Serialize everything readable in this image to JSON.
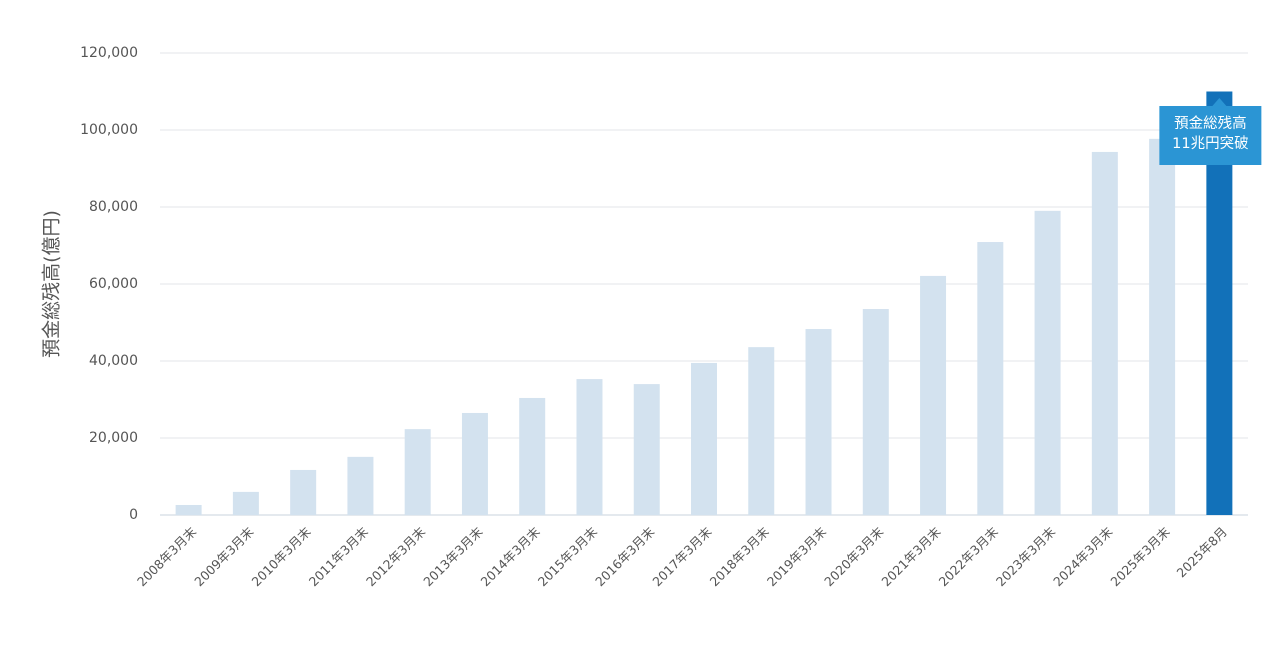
{
  "chart_data": {
    "type": "bar",
    "y_label": "預金総残高(億円)",
    "categories": [
      "2008年3月末",
      "2009年3月末",
      "2010年3月末",
      "2011年3月末",
      "2012年3月末",
      "2013年3月末",
      "2014年3月末",
      "2015年3月末",
      "2016年3月末",
      "2017年3月末",
      "2018年3月末",
      "2019年3月末",
      "2020年3月末",
      "2021年3月末",
      "2022年3月末",
      "2023年3月末",
      "2024年3月末",
      "2025年3月末",
      "2025年8月"
    ],
    "values": [
      2600,
      6000,
      11700,
      15100,
      22300,
      26500,
      30400,
      35300,
      34000,
      39500,
      43600,
      48300,
      53500,
      62100,
      70900,
      79000,
      94300,
      97700,
      110000
    ],
    "colors": [
      "#d3e2ef",
      "#d3e2ef",
      "#d3e2ef",
      "#d3e2ef",
      "#d3e2ef",
      "#d3e2ef",
      "#d3e2ef",
      "#d3e2ef",
      "#d3e2ef",
      "#d3e2ef",
      "#d3e2ef",
      "#d3e2ef",
      "#d3e2ef",
      "#d3e2ef",
      "#d3e2ef",
      "#d3e2ef",
      "#d3e2ef",
      "#d3e2ef",
      "#1271b9"
    ],
    "annotation": [
      "預金総残高",
      "11兆円突破"
    ],
    "ylim": [
      0,
      120000
    ],
    "yticks": [
      0,
      {
        "value": 20000,
        "label": "20,000"
      },
      {
        "value": 40000,
        "label": "40,000"
      },
      {
        "value": 60000,
        "label": "60,000"
      },
      {
        "value": 80000,
        "label": "80,000"
      },
      {
        "value": 100000,
        "label": "100,000"
      },
      {
        "value": 120000,
        "label": "120,000"
      }
    ],
    "grid": true
  }
}
